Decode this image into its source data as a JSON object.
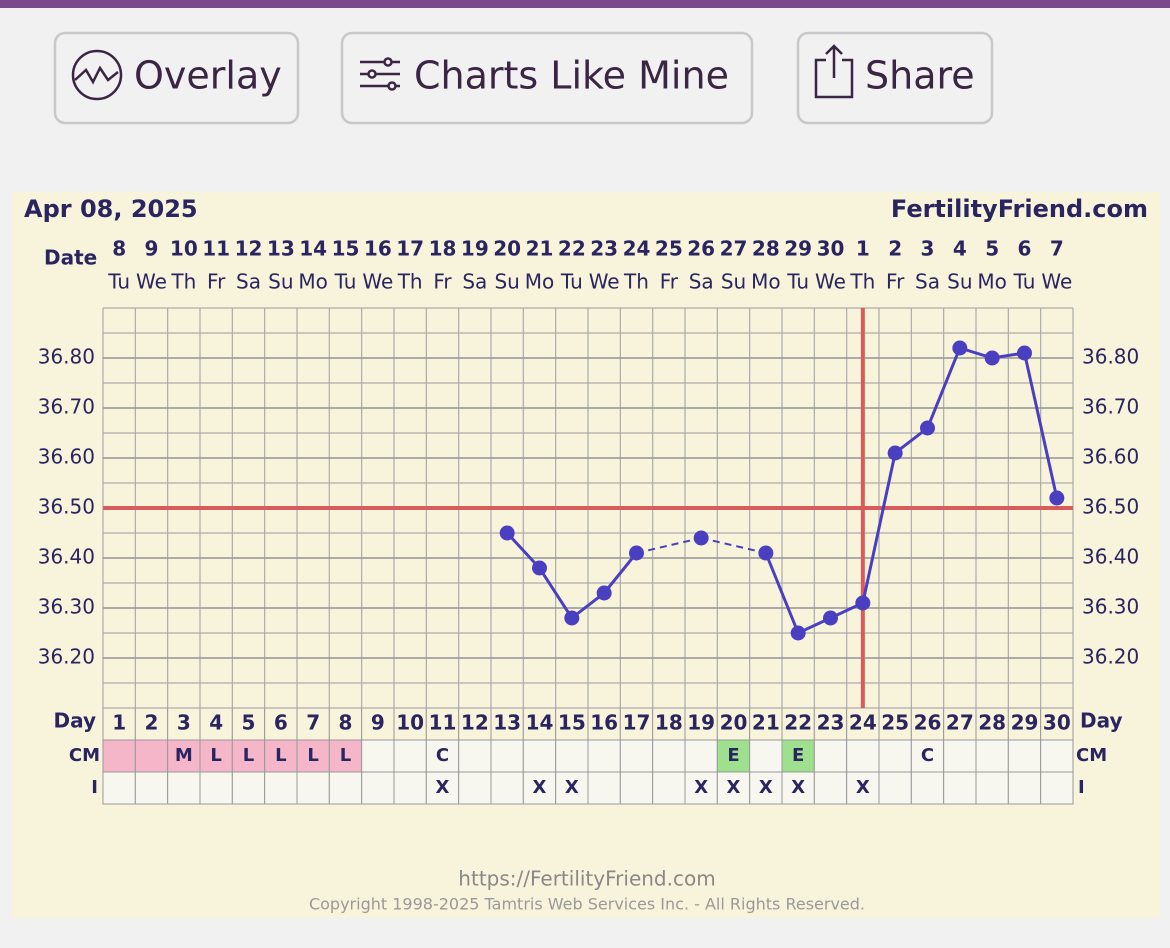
{
  "buttons": [
    {
      "label": "Overlay"
    },
    {
      "label": "Charts Like Mine"
    },
    {
      "label": "Share"
    }
  ],
  "chart_data": {
    "type": "line",
    "title": "Apr 08, 2025",
    "site": "FertilityFriend.com",
    "date_label": "Date",
    "day_label": "Day",
    "cm_label": "CM",
    "i_label": "I",
    "dates": [
      "8",
      "9",
      "10",
      "11",
      "12",
      "13",
      "14",
      "15",
      "16",
      "17",
      "18",
      "19",
      "20",
      "21",
      "22",
      "23",
      "24",
      "25",
      "26",
      "27",
      "28",
      "29",
      "30",
      "1",
      "2",
      "3",
      "4",
      "5",
      "6",
      "7"
    ],
    "weekdays": [
      "Tu",
      "We",
      "Th",
      "Fr",
      "Sa",
      "Su",
      "Mo",
      "Tu",
      "We",
      "Th",
      "Fr",
      "Sa",
      "Su",
      "Mo",
      "Tu",
      "We",
      "Th",
      "Fr",
      "Sa",
      "Su",
      "Mo",
      "Tu",
      "We",
      "Th",
      "Fr",
      "Sa",
      "Su",
      "Mo",
      "Tu",
      "We"
    ],
    "x": [
      1,
      2,
      3,
      4,
      5,
      6,
      7,
      8,
      9,
      10,
      11,
      12,
      13,
      14,
      15,
      16,
      17,
      18,
      19,
      20,
      21,
      22,
      23,
      24,
      25,
      26,
      27,
      28,
      29,
      30
    ],
    "series": [
      {
        "name": "Temperature",
        "color": "#4a3fc0",
        "values": [
          null,
          null,
          null,
          null,
          null,
          null,
          null,
          null,
          null,
          null,
          null,
          null,
          36.45,
          36.38,
          36.28,
          36.33,
          36.41,
          null,
          36.44,
          null,
          36.41,
          36.25,
          36.28,
          36.31,
          36.61,
          36.66,
          36.82,
          36.8,
          36.81,
          36.52
        ]
      }
    ],
    "ylim": [
      36.1,
      36.9
    ],
    "yticks": [
      {
        "value": 36.2,
        "label": "36.20"
      },
      {
        "value": 36.3,
        "label": "36.30"
      },
      {
        "value": 36.4,
        "label": "36.40"
      },
      {
        "value": 36.5,
        "label": "36.50"
      },
      {
        "value": 36.6,
        "label": "36.60"
      },
      {
        "value": 36.7,
        "label": "36.70"
      },
      {
        "value": 36.8,
        "label": "36.80"
      }
    ],
    "coverline": 36.5,
    "ovulation_day": 24,
    "marker_color": "#d95b5b",
    "cm": [
      null,
      null,
      "M",
      "L",
      "L",
      "L",
      "L",
      "L",
      null,
      null,
      "C",
      null,
      null,
      null,
      null,
      null,
      null,
      null,
      null,
      "E",
      null,
      "E",
      null,
      null,
      null,
      "C",
      null,
      null,
      null,
      null
    ],
    "cm_colors": [
      "#f4b6c8",
      "#f4b6c8",
      "#f4b6c8",
      "#f4b6c8",
      "#f4b6c8",
      "#f4b6c8",
      "#f4b6c8",
      "#f4b6c8",
      null,
      null,
      null,
      null,
      null,
      null,
      null,
      null,
      null,
      null,
      null,
      "#9ee08e",
      null,
      "#9ee08e",
      null,
      null,
      null,
      null,
      null,
      null,
      null,
      null
    ],
    "intercourse": [
      null,
      null,
      null,
      null,
      null,
      null,
      null,
      null,
      null,
      null,
      "X",
      null,
      null,
      "X",
      "X",
      null,
      null,
      null,
      "X",
      "X",
      "X",
      "X",
      null,
      "X",
      null,
      null,
      null,
      null,
      null,
      null
    ],
    "grid": true
  },
  "footer": {
    "url": "https://FertilityFriend.com",
    "copyright": "Copyright 1998-2025 Tamtris Web Services Inc. - All Rights Reserved."
  }
}
